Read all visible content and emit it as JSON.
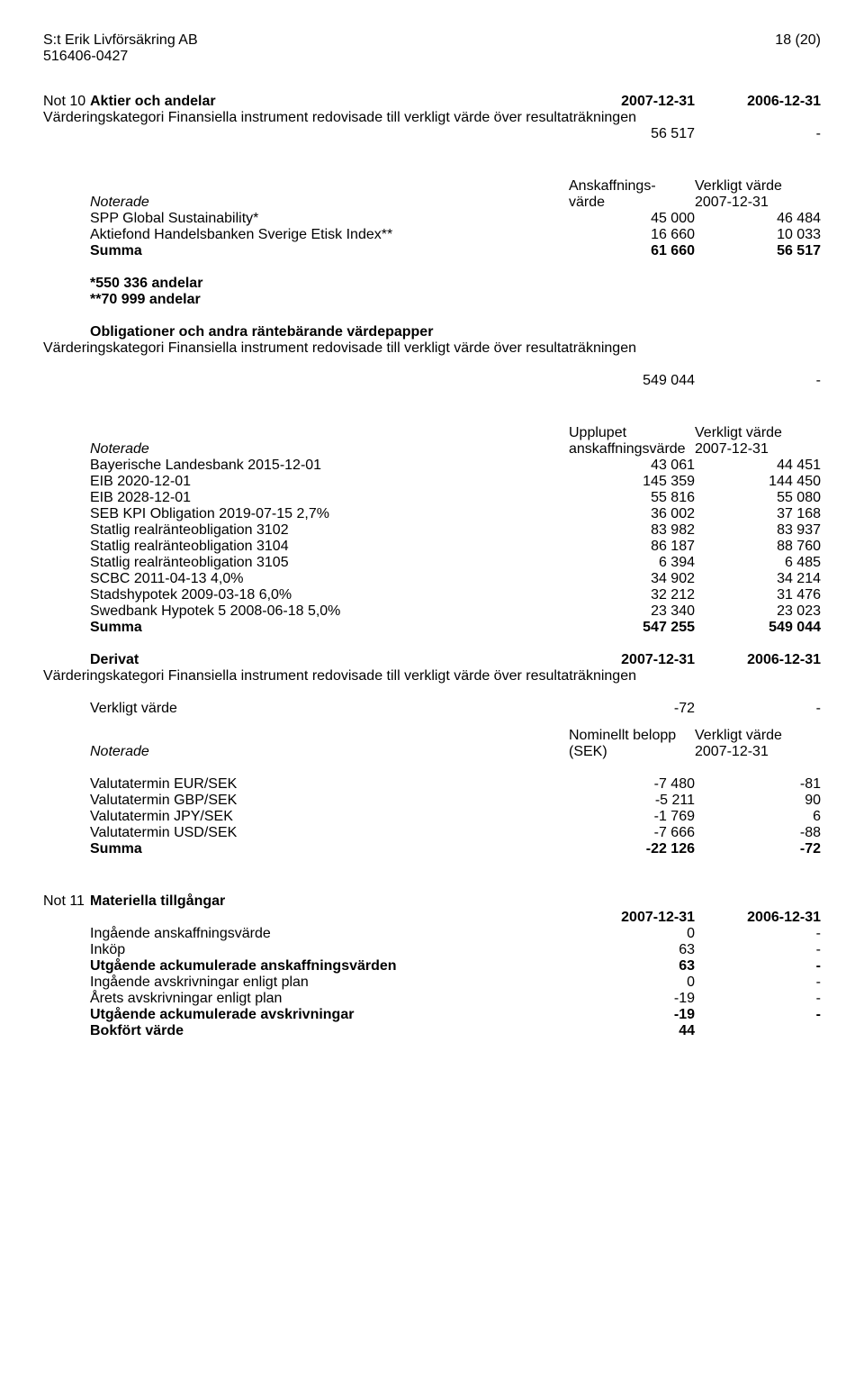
{
  "header": {
    "company": "S:t Erik Livförsäkring AB",
    "orgnr": "516406-0427",
    "page": "18 (20)"
  },
  "not10": {
    "note_label": "Not 10",
    "title": "Aktier och andelar",
    "col1": "2007-12-31",
    "col2": "2006-12-31",
    "desc": "Värderingskategori Finansiella instrument redovisade till verkligt värde över resultaträkningen",
    "val1": "56 517",
    "val2": "-"
  },
  "table1": {
    "h_noterade": "Noterade",
    "h_col1a": "Anskaffnings-",
    "h_col1b": "värde",
    "h_col2a": "Verkligt värde",
    "h_col2b": "2007-12-31",
    "rows": [
      {
        "l": "SPP Global Sustainability*",
        "a": "45 000",
        "b": "46 484"
      },
      {
        "l": "Aktiefond Handelsbanken Sverige Etisk Index**",
        "a": "16 660",
        "b": "10 033"
      }
    ],
    "sum_l": "Summa",
    "sum_a": "61 660",
    "sum_b": "56 517",
    "foot1": "*550 336 andelar",
    "foot2": "**70 999 andelar"
  },
  "oblig": {
    "title": "Obligationer och andra räntebärande värdepapper",
    "desc": "Värderingskategori Finansiella instrument redovisade till verkligt värde över resultaträkningen",
    "val1": "549 044",
    "val2": "-"
  },
  "table2": {
    "h_noterade": "Noterade",
    "h_col1a": "Upplupet",
    "h_col1b": "anskaffningsvärde",
    "h_col2a": "Verkligt värde",
    "h_col2b": "2007-12-31",
    "rows": [
      {
        "l": "Bayerische Landesbank 2015-12-01",
        "a": "43 061",
        "b": "44 451"
      },
      {
        "l": "EIB 2020-12-01",
        "a": "145 359",
        "b": "144 450"
      },
      {
        "l": "EIB 2028-12-01",
        "a": "55 816",
        "b": "55 080"
      },
      {
        "l": "SEB KPI Obligation 2019-07-15 2,7%",
        "a": "36 002",
        "b": "37 168"
      },
      {
        "l": "Statlig realränteobligation 3102",
        "a": "83 982",
        "b": "83 937"
      },
      {
        "l": "Statlig realränteobligation 3104",
        "a": "86 187",
        "b": "88 760"
      },
      {
        "l": "Statlig realränteobligation 3105",
        "a": "6 394",
        "b": "6 485"
      },
      {
        "l": "SCBC 2011-04-13 4,0%",
        "a": "34 902",
        "b": "34 214"
      },
      {
        "l": "Stadshypotek 2009-03-18 6,0%",
        "a": "32 212",
        "b": "31 476"
      },
      {
        "l": "Swedbank Hypotek 5 2008-06-18 5,0%",
        "a": "23 340",
        "b": "23 023"
      }
    ],
    "sum_l": "Summa",
    "sum_a": "547 255",
    "sum_b": "549 044"
  },
  "derivat": {
    "title": "Derivat",
    "col1": "2007-12-31",
    "col2": "2006-12-31",
    "desc": "Värderingskategori Finansiella instrument redovisade till verkligt värde över resultaträkningen",
    "vv_label": "Verkligt värde",
    "vv_a": "-72",
    "vv_b": "-"
  },
  "table3": {
    "h_noterade": "Noterade",
    "h_col1a": "Nominellt belopp",
    "h_col1b": "(SEK)",
    "h_col2a": "Verkligt värde",
    "h_col2b": "2007-12-31",
    "rows": [
      {
        "l": "Valutatermin EUR/SEK",
        "a": "-7 480",
        "b": "-81"
      },
      {
        "l": "Valutatermin GBP/SEK",
        "a": "-5 211",
        "b": "90"
      },
      {
        "l": "Valutatermin JPY/SEK",
        "a": "-1 769",
        "b": "6"
      },
      {
        "l": "Valutatermin USD/SEK",
        "a": "-7 666",
        "b": "-88"
      }
    ],
    "sum_l": "Summa",
    "sum_a": "-22 126",
    "sum_b": "-72"
  },
  "not11": {
    "note_label": "Not 11",
    "title": "Materiella tillgångar",
    "col1": "2007-12-31",
    "col2": "2006-12-31",
    "rows": [
      {
        "l": "Ingående anskaffningsvärde",
        "a": "0",
        "b": "-",
        "bold": false
      },
      {
        "l": "Inköp",
        "a": "63",
        "b": "-",
        "bold": false
      },
      {
        "l": "Utgående ackumulerade anskaffningsvärden",
        "a": "63",
        "b": "-",
        "bold": true
      },
      {
        "l": "Ingående avskrivningar enligt plan",
        "a": "0",
        "b": "-",
        "bold": false
      },
      {
        "l": "Årets avskrivningar enligt plan",
        "a": "-19",
        "b": "-",
        "bold": false
      },
      {
        "l": "Utgående ackumulerade avskrivningar",
        "a": "-19",
        "b": "-",
        "bold": true
      },
      {
        "l": "Bokfört värde",
        "a": "44",
        "b": "",
        "bold": true
      }
    ]
  }
}
